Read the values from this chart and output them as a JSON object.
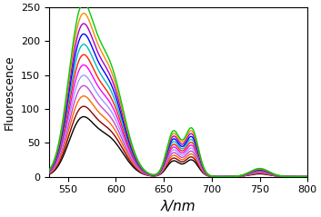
{
  "x_start": 530,
  "x_end": 800,
  "xlim": [
    530,
    800
  ],
  "ylim": [
    0,
    250
  ],
  "yticks": [
    0,
    50,
    100,
    150,
    200,
    250
  ],
  "xticks": [
    550,
    600,
    650,
    700,
    750,
    800
  ],
  "xlabel": "λ/nm",
  "ylabel": "Fluorescence",
  "n_curves": 12,
  "colors": [
    "#000000",
    "#8B0000",
    "#FF6600",
    "#CC44CC",
    "#9999FF",
    "#FF00FF",
    "#FF2200",
    "#00BBBB",
    "#0000FF",
    "#AA00CC",
    "#FF8800",
    "#00CC00"
  ],
  "peak1_wl": 563,
  "peak1_sigma": 13,
  "peak2_wl": 592,
  "peak2_sigma": 16,
  "peak2_rel": 0.72,
  "peak3_wl": 660,
  "peak3_sigma": 7,
  "peak3_rel": 0.3,
  "peak4_wl": 679,
  "peak4_sigma": 7,
  "peak4_rel": 0.32,
  "peak5_wl": 750,
  "peak5_sigma": 10,
  "peak5_rel": 0.055,
  "scale_min": 0.345,
  "scale_max": 1.0,
  "linewidth": 1.0,
  "figsize": [
    3.53,
    2.39
  ],
  "dpi": 100,
  "xlabel_fontsize": 11,
  "ylabel_fontsize": 9,
  "tick_fontsize": 8
}
